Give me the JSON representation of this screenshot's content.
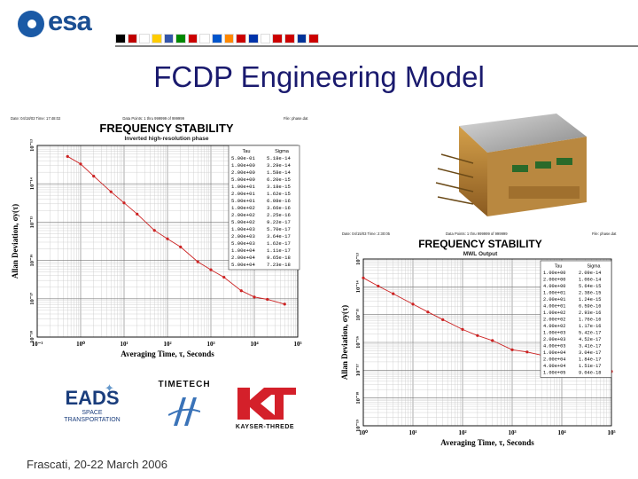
{
  "header": {
    "logo_text": "esa",
    "flag_colors": [
      "#000000",
      "#c00000",
      "#ffffff",
      "#ffcc00",
      "#3355aa",
      "#008800",
      "#cc0000",
      "#ffffff",
      "#0055cc",
      "#ff8800",
      "#cc0000",
      "#0033aa",
      "#ffffff",
      "#cc0000",
      "#cc0000",
      "#003399",
      "#cc0000"
    ]
  },
  "slide": {
    "title": "FCDP Engineering Model",
    "footer": "Frascati, 20-22 March 2006"
  },
  "logos": {
    "eads_line1": "EADS",
    "eads_line2": "SPACE",
    "eads_line3": "TRANSPORTATION",
    "timetech": "TIMETECH",
    "kt": "KAYSER-THREDE"
  },
  "chart_data": [
    {
      "type": "line",
      "header_left": "Date: 04/18/03  Time: 17:48:02",
      "header_mid": "Data Points: 1 thru 999999 of 999999",
      "header_right": "File: phase.dat",
      "title": "FREQUENCY STABILITY",
      "subtitle": "Inverted high-resolution phase",
      "xlabel": "Averaging Time, τ, Seconds",
      "ylabel": "Allan Deviation, σy(τ)",
      "xscale": "log",
      "yscale": "log",
      "xlim": [
        -1,
        5
      ],
      "ylim": [
        -18,
        -13
      ],
      "xticks": [
        "10⁻¹",
        "10⁰",
        "10¹",
        "10²",
        "10³",
        "10⁴",
        "10⁵"
      ],
      "yticks": [
        "10⁻¹³",
        "10⁻¹⁴",
        "10⁻¹⁵",
        "10⁻¹⁶",
        "10⁻¹⁷",
        "10⁻¹⁸"
      ],
      "table_headers": [
        "Tau",
        "Sigma"
      ],
      "table": [
        [
          "5.00e-01",
          "5.18e-14"
        ],
        [
          "1.00e+00",
          "3.29e-14"
        ],
        [
          "2.00e+00",
          "1.58e-14"
        ],
        [
          "5.00e+00",
          "6.20e-15"
        ],
        [
          "1.00e+01",
          "3.18e-15"
        ],
        [
          "2.00e+01",
          "1.62e-15"
        ],
        [
          "5.00e+01",
          "6.08e-16"
        ],
        [
          "1.00e+02",
          "3.66e-16"
        ],
        [
          "2.00e+02",
          "2.25e-16"
        ],
        [
          "5.00e+02",
          "9.22e-17"
        ],
        [
          "1.00e+03",
          "5.70e-17"
        ],
        [
          "2.00e+03",
          "3.64e-17"
        ],
        [
          "5.00e+03",
          "1.62e-17"
        ],
        [
          "1.00e+04",
          "1.11e-17"
        ],
        [
          "2.00e+04",
          "9.65e-18"
        ],
        [
          "5.00e+04",
          "7.23e-18"
        ]
      ],
      "x": [
        0.5,
        1,
        2,
        5,
        10,
        20,
        50,
        100,
        200,
        500,
        1000,
        2000,
        5000,
        10000,
        20000,
        50000
      ],
      "y": [
        5.18e-14,
        3.29e-14,
        1.58e-14,
        6.2e-15,
        3.18e-15,
        1.62e-15,
        6.08e-16,
        3.66e-16,
        2.25e-16,
        9.22e-17,
        5.7e-17,
        3.64e-17,
        1.62e-17,
        1.11e-17,
        9.65e-18,
        7.23e-18
      ],
      "color": "#cc2222",
      "grid": true
    },
    {
      "type": "line",
      "header_left": "Date: 04/15/03  Time: 2:30:05",
      "header_mid": "Data Points: 1 thru 999999 of 999999",
      "header_right": "File: phase.dat",
      "title": "FREQUENCY STABILITY",
      "subtitle": "MWL Output",
      "xlabel": "Averaging Time, τ, Seconds",
      "ylabel": "Allan Deviation, σy(τ)",
      "xscale": "log",
      "yscale": "log",
      "xlim": [
        0,
        5
      ],
      "ylim": [
        -19,
        -13
      ],
      "xticks": [
        "10⁰",
        "10¹",
        "10²",
        "10³",
        "10⁴",
        "10⁵"
      ],
      "yticks": [
        "10⁻¹³",
        "10⁻¹⁴",
        "10⁻¹⁵",
        "10⁻¹⁶",
        "10⁻¹⁷",
        "10⁻¹⁸",
        "10⁻¹⁹"
      ],
      "table_headers": [
        "Tau",
        "Sigma"
      ],
      "table": [
        [
          "1.00e+00",
          "2.09e-14"
        ],
        [
          "2.00e+00",
          "1.06e-14"
        ],
        [
          "4.00e+00",
          "5.64e-15"
        ],
        [
          "1.00e+01",
          "2.38e-15"
        ],
        [
          "2.00e+01",
          "1.24e-15"
        ],
        [
          "4.00e+01",
          "6.59e-16"
        ],
        [
          "1.00e+02",
          "2.93e-16"
        ],
        [
          "2.00e+02",
          "1.76e-16"
        ],
        [
          "4.00e+02",
          "1.17e-16"
        ],
        [
          "1.00e+03",
          "5.42e-17"
        ],
        [
          "2.00e+03",
          "4.52e-17"
        ],
        [
          "4.00e+03",
          "3.41e-17"
        ],
        [
          "1.00e+04",
          "3.04e-17"
        ],
        [
          "2.00e+04",
          "1.84e-17"
        ],
        [
          "4.00e+04",
          "1.51e-17"
        ],
        [
          "1.00e+05",
          "9.04e-18"
        ]
      ],
      "x": [
        1,
        2,
        4,
        10,
        20,
        40,
        100,
        200,
        400,
        1000,
        2000,
        4000,
        10000,
        20000,
        40000,
        100000
      ],
      "y": [
        2.09e-14,
        1.06e-14,
        5.64e-15,
        2.38e-15,
        1.24e-15,
        6.59e-16,
        2.93e-16,
        1.76e-16,
        1.17e-16,
        5.42e-17,
        4.52e-17,
        3.41e-17,
        3.04e-17,
        1.84e-17,
        1.51e-17,
        9.04e-18
      ],
      "color": "#cc2222",
      "grid": true
    }
  ]
}
